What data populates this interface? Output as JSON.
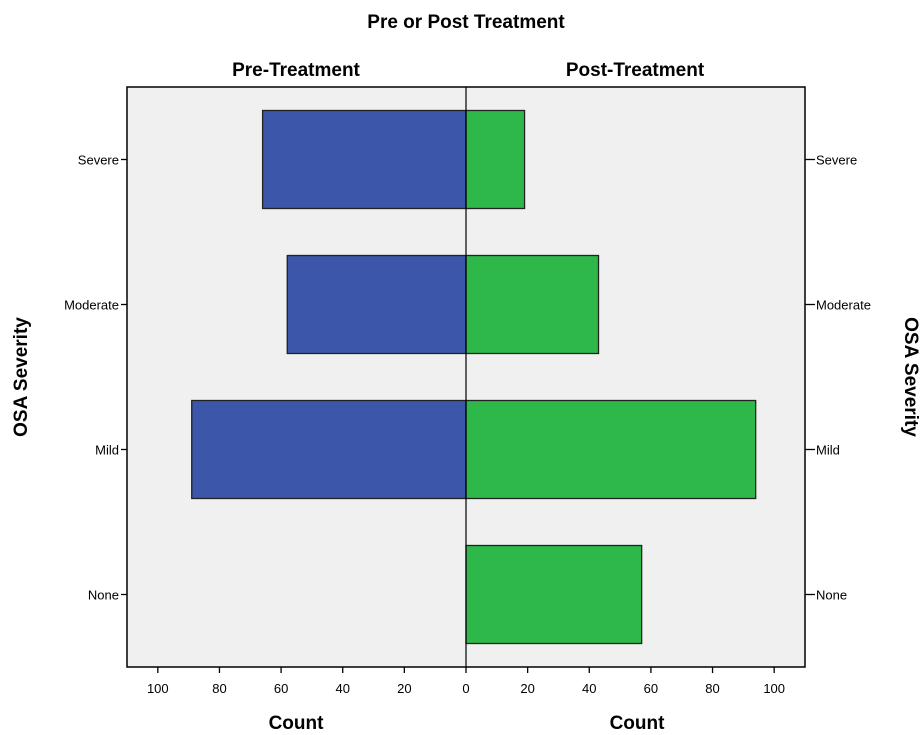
{
  "chart_data": {
    "type": "bar",
    "orientation": "horizontal",
    "layout": "back-to-back",
    "title": "Pre or Post Treatment",
    "categories": [
      "Severe",
      "Moderate",
      "Mild",
      "None"
    ],
    "series": [
      {
        "name": "Pre-Treatment",
        "values": [
          66,
          58,
          89,
          0
        ],
        "color": "#3c56aa"
      },
      {
        "name": "Post-Treatment",
        "values": [
          19,
          43,
          94,
          57
        ],
        "color": "#2fb84a"
      }
    ],
    "ylabel": "OSA Severity",
    "xlabel": "Count",
    "xlim": [
      0,
      110
    ],
    "xticks": [
      0,
      20,
      40,
      60,
      80,
      100
    ],
    "plot_background": "#f0f0f0",
    "grid": false,
    "legend": "none"
  }
}
